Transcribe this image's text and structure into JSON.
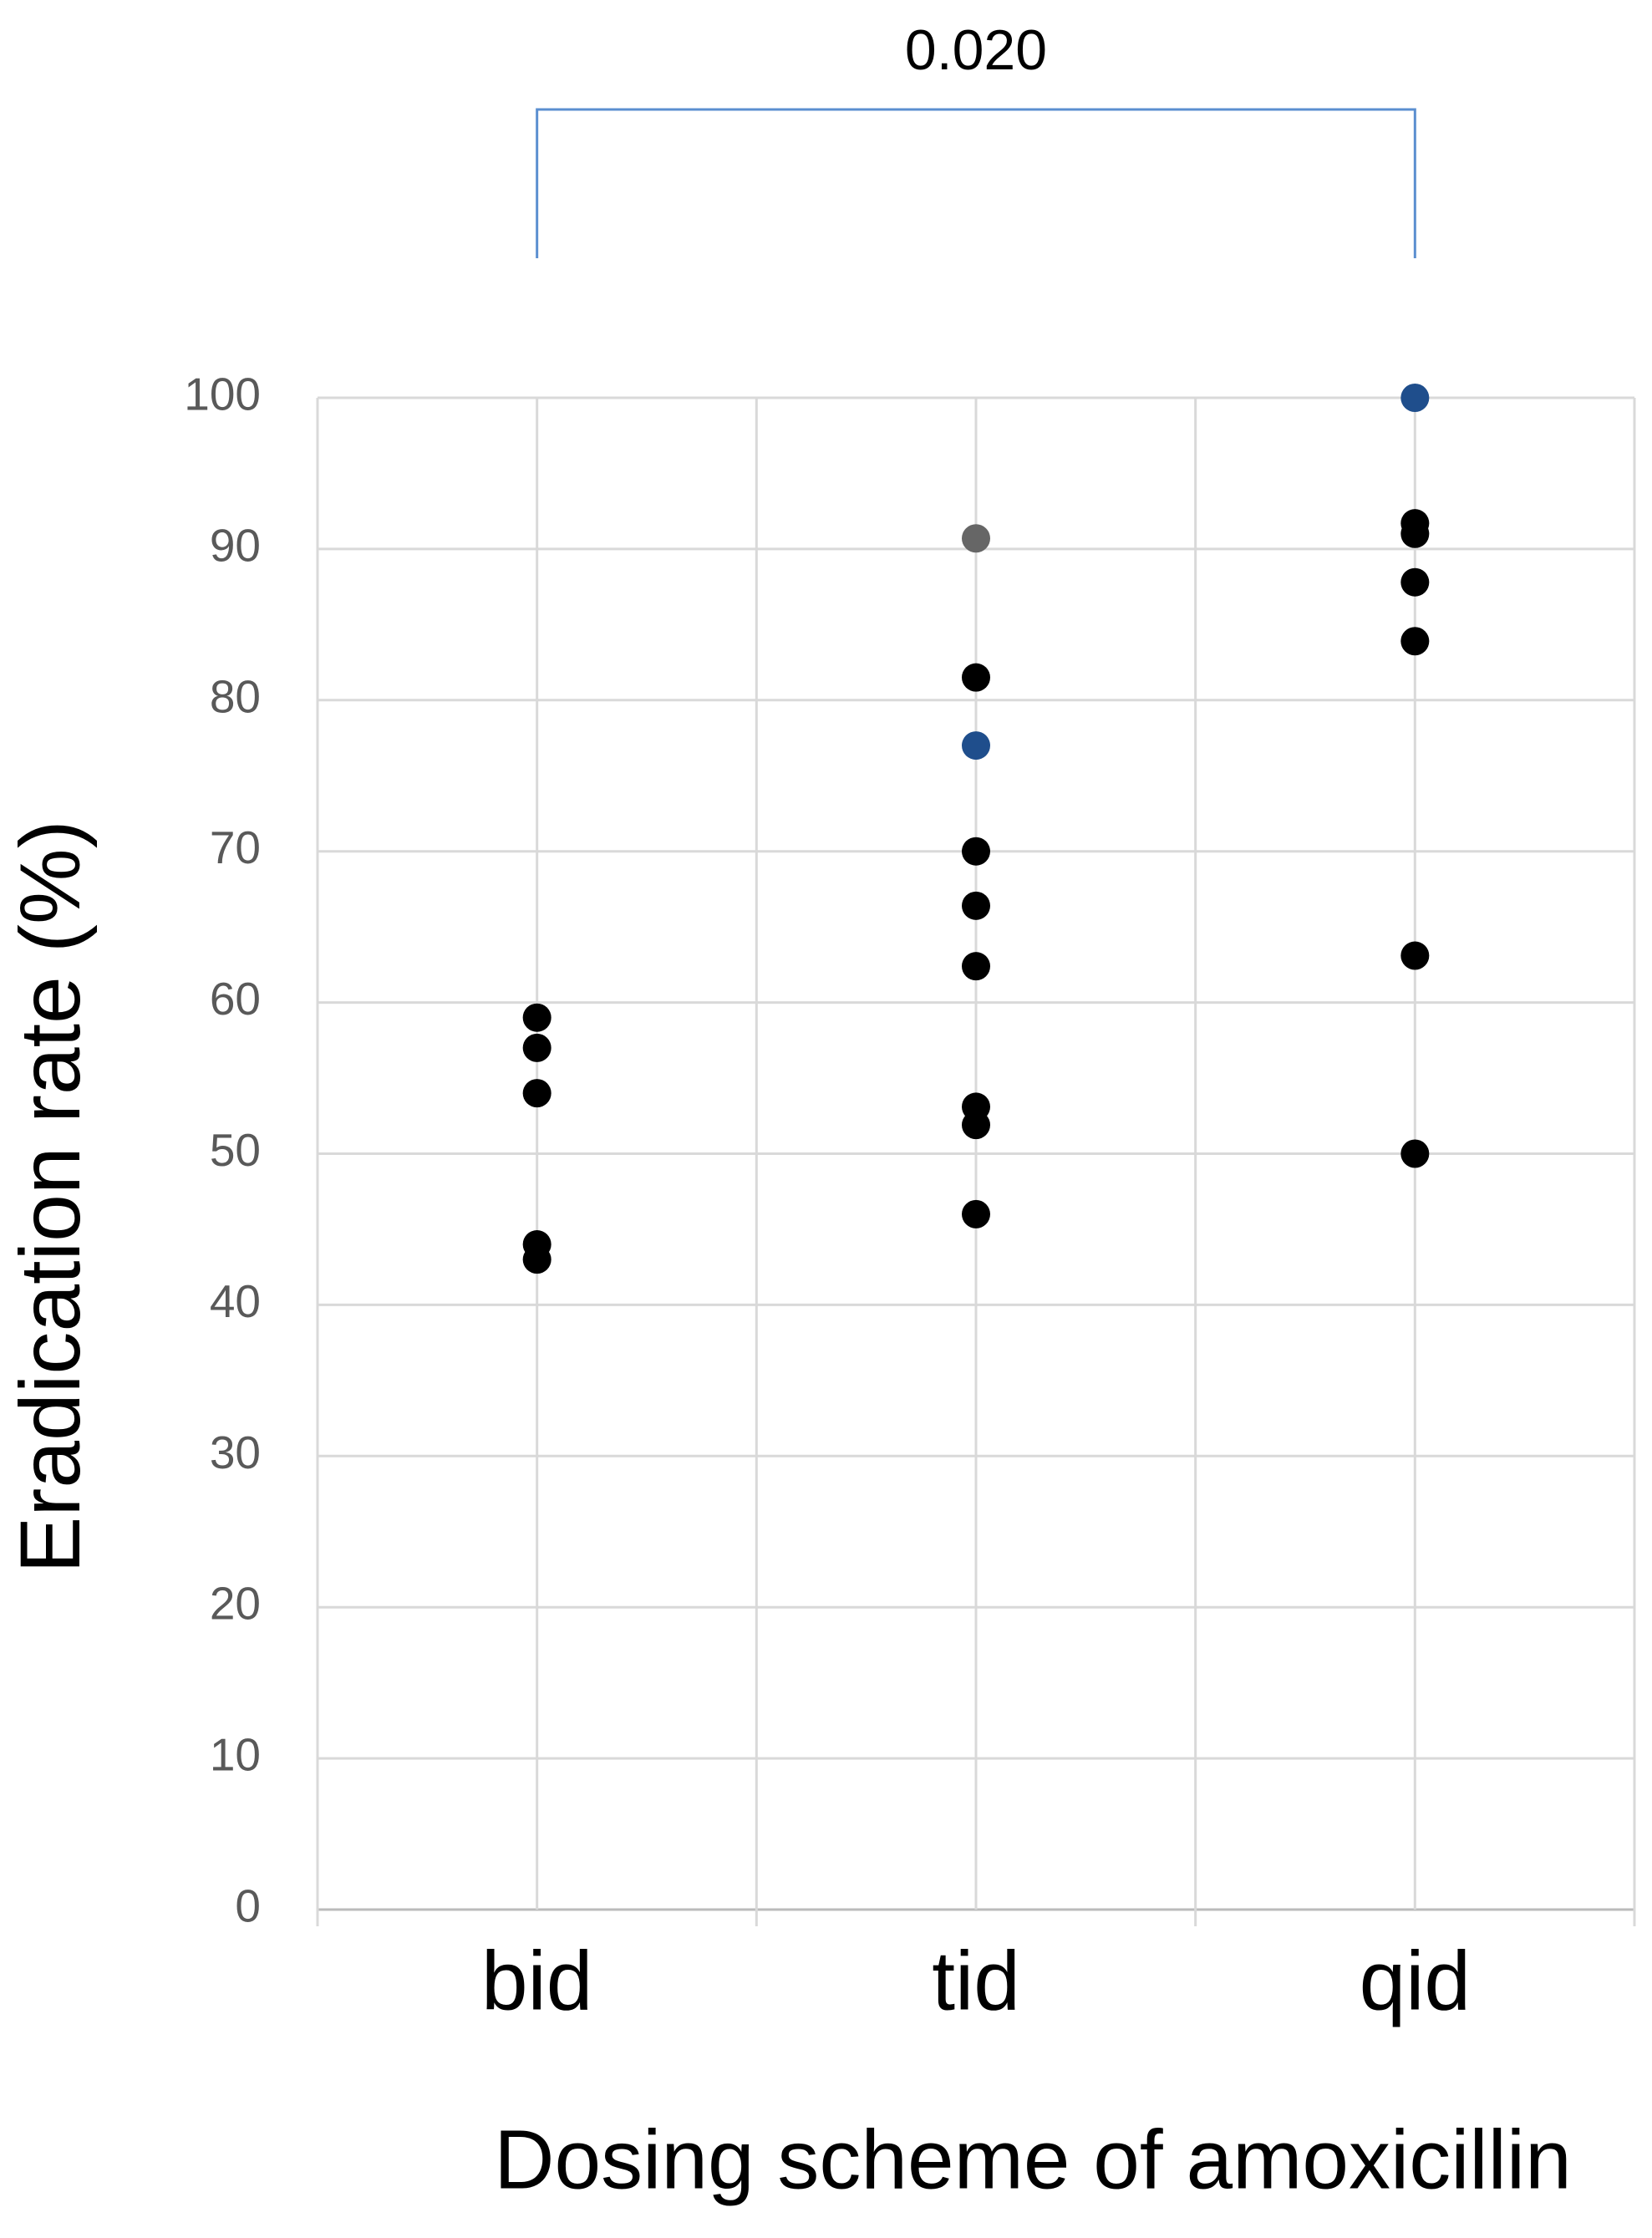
{
  "chart_data": {
    "type": "strip",
    "y_label": "Eradication rate (%)",
    "x_label": "Dosing scheme of amoxicillin",
    "categories": [
      "bid",
      "tid",
      "qid"
    ],
    "values": [
      [
        59,
        57,
        54,
        44,
        43
      ],
      [
        90.7,
        81.5,
        77,
        70,
        66.4,
        62.4,
        53.1,
        51.9,
        46
      ],
      [
        100,
        91.7,
        91,
        87.8,
        83.9,
        63.1,
        50
      ]
    ],
    "colors": [
      [
        "#000000",
        "#000000",
        "#000000",
        "#000000",
        "#000000"
      ],
      [
        "#666666",
        "#000000",
        "#1f4e8c",
        "#000000",
        "#000000",
        "#000000",
        "#000000",
        "#000000",
        "#000000"
      ],
      [
        "#1f4e8c",
        "#000000",
        "#000000",
        "#000000",
        "#000000",
        "#000000",
        "#000000"
      ]
    ],
    "ylim": [
      0,
      100
    ],
    "yticks": [
      0,
      10,
      20,
      30,
      40,
      50,
      60,
      70,
      80,
      90,
      100
    ],
    "grid": true,
    "brackets": [
      {
        "label": "0.020",
        "between": [
          0,
          2
        ],
        "color": "#5b8fd0"
      }
    ]
  }
}
